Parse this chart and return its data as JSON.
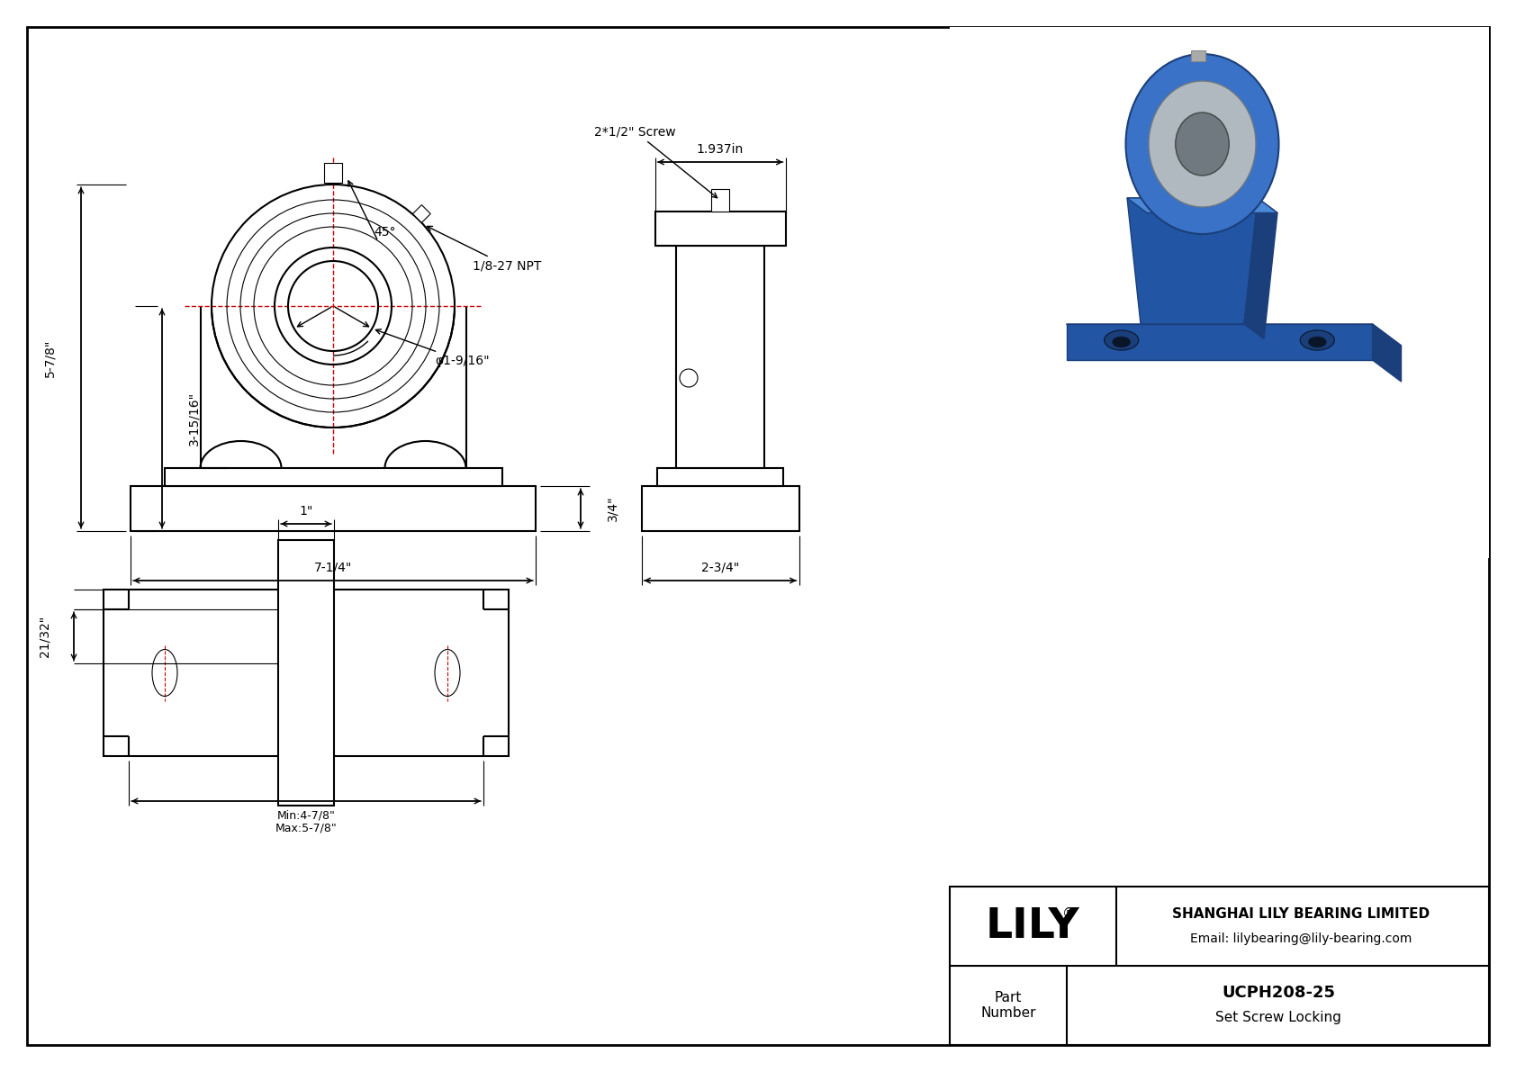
{
  "bg_color": "#ffffff",
  "line_color": "#000000",
  "red_color": "#cc0000",
  "dim_5_7_8": "5-7/8\"",
  "dim_3_15_16": "3-15/16\"",
  "dim_7_1_4": "7-1/4\"",
  "dim_45": "45°",
  "dim_1_8_27_npt": "1/8-27 NPT",
  "dim_phi_1_9_16": "φ1-9/16\"",
  "dim_3_4": "3/4\"",
  "dim_1_937": "1.937in",
  "dim_2_1_2_screw": "2*1/2\" Screw",
  "dim_2_3_4": "2-3/4\"",
  "dim_1": "1\"",
  "dim_21_32": "21/32\"",
  "dim_min_4_7_8": "Min:4-7/8\"",
  "dim_max_5_7_8": "Max:5-7/8\"",
  "title_company": "SHANGHAI LILY BEARING LIMITED",
  "title_email": "Email: lilybearing@lily-bearing.com",
  "part_label": "Part\nNumber",
  "part_number": "UCPH208-25",
  "part_type": "Set Screw Locking"
}
